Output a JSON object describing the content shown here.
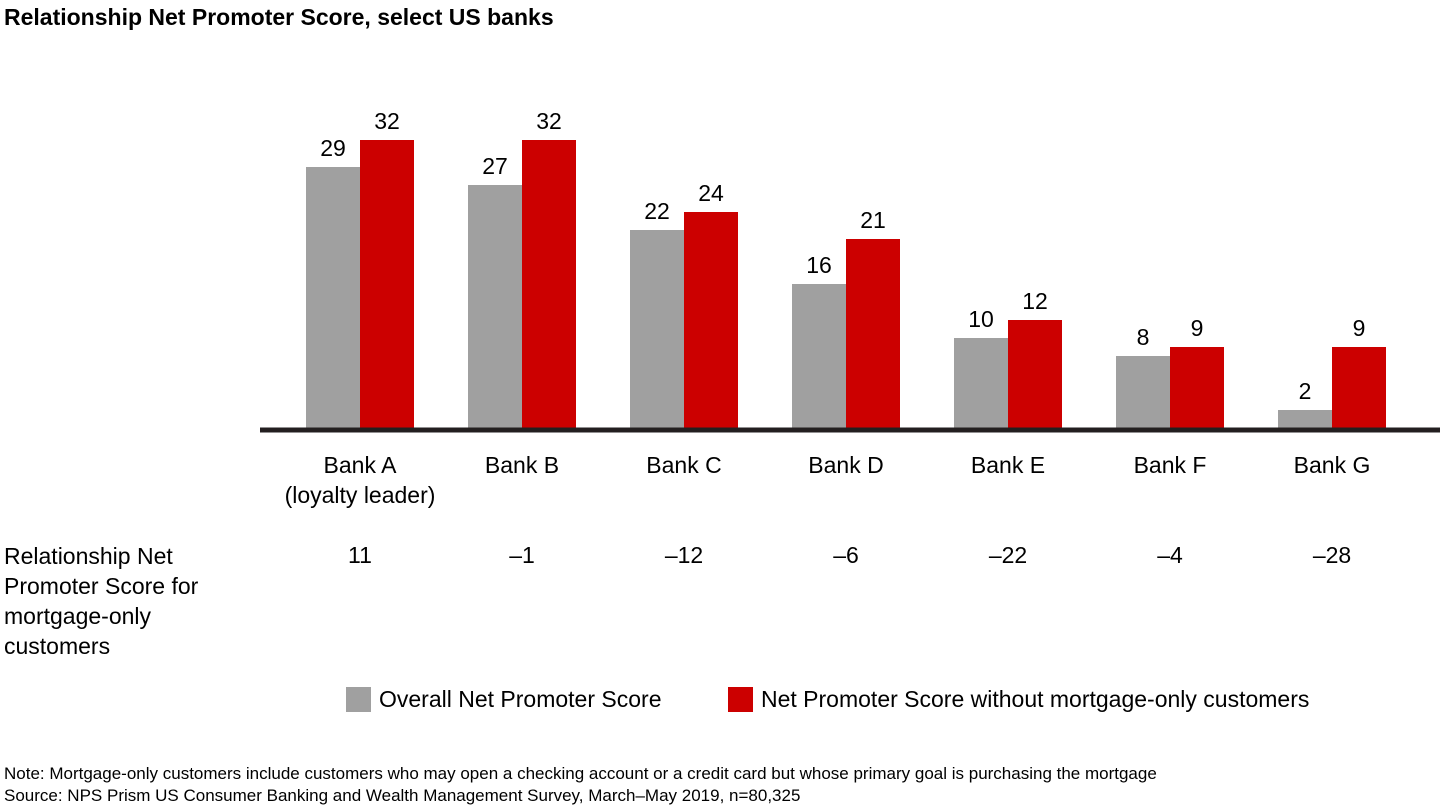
{
  "title": "Relationship Net Promoter Score, select US banks",
  "chart_data": {
    "type": "bar",
    "categories": [
      [
        "Bank A",
        "(loyalty leader)"
      ],
      [
        "Bank B"
      ],
      [
        "Bank C"
      ],
      [
        "Bank D"
      ],
      [
        "Bank E"
      ],
      [
        "Bank F"
      ],
      [
        "Bank G"
      ]
    ],
    "series": [
      {
        "name": "Overall Net Promoter Score",
        "values": [
          29,
          27,
          22,
          16,
          10,
          8,
          2
        ],
        "color": "#a0a0a0"
      },
      {
        "name": "Net Promoter Score without mortgage-only customers",
        "values": [
          32,
          32,
          24,
          21,
          12,
          9,
          9
        ],
        "color": "#cc0000"
      }
    ],
    "ylim": [
      0,
      32
    ],
    "grid": false,
    "legend_position": "bottom-center"
  },
  "mortgage_row": {
    "label": "Relationship Net Promoter Score for mortgage-only customers",
    "values": [
      "11",
      "–1",
      "–12",
      "–6",
      "–22",
      "–4",
      "–28"
    ]
  },
  "footnotes": {
    "note": "Note: Mortgage-only customers include customers who may open a checking account or a credit card but whose primary goal is purchasing the mortgage",
    "source": "Source: NPS Prism US Consumer Banking and Wealth Management Survey, March–May 2019, n=80,325"
  }
}
